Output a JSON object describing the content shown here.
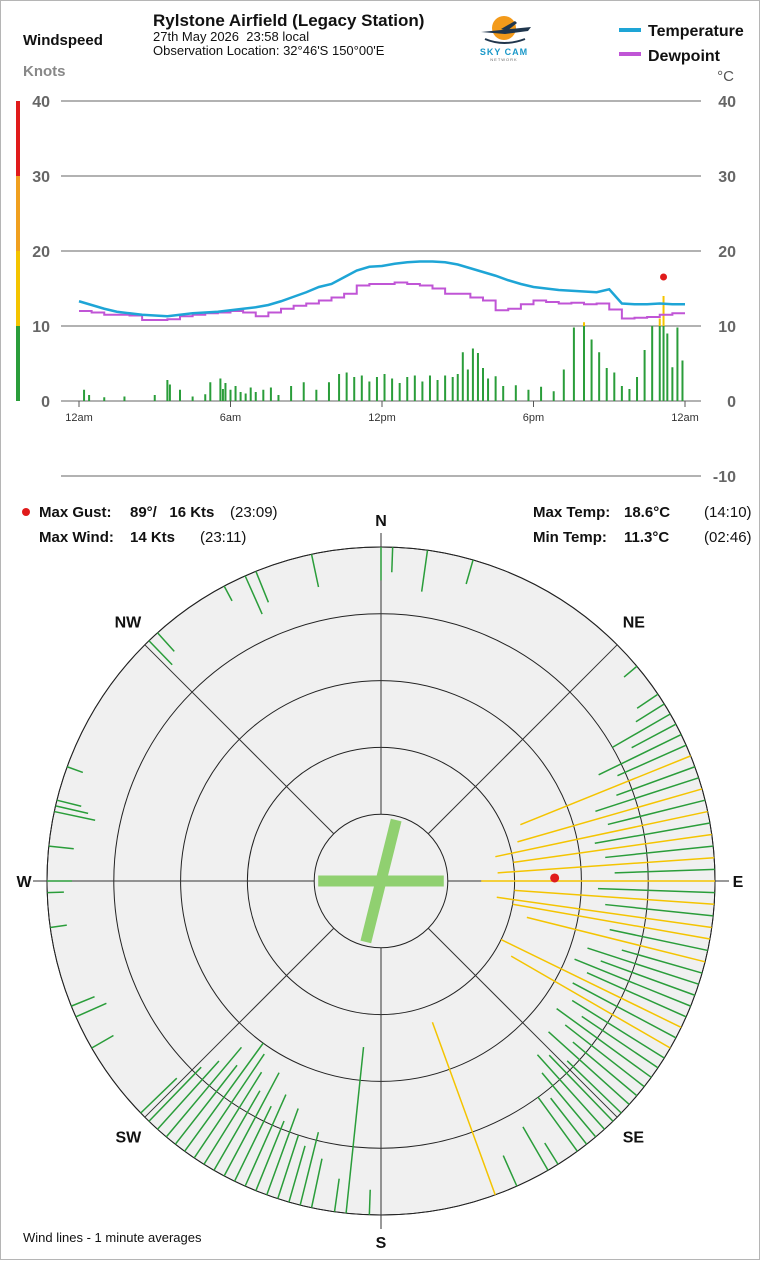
{
  "header": {
    "title": "Rylstone Airfield (Legacy Station)",
    "datetime": "27th May 2026  23:58 local",
    "location": "Observation Location: 32°46'S 150°00'E",
    "logo_text": "SKY CAM",
    "logo_subtext": "NETWORK"
  },
  "left_axis": {
    "title": "Windspeed",
    "unit": "Knots"
  },
  "right_axis": {
    "unit": "°C"
  },
  "legend": [
    {
      "label": "Temperature",
      "color": "#1ea5d6"
    },
    {
      "label": "Dewpoint",
      "color": "#c055d6"
    }
  ],
  "stats": {
    "max_gust_label": "Max Gust:",
    "max_gust_value": "89°/   16 Kts",
    "max_gust_time": "(23:09)",
    "max_wind_label": "Max Wind:",
    "max_wind_value": "14 Kts",
    "max_wind_time": "(23:11)",
    "max_temp_label": "Max Temp:",
    "max_temp_value": "18.6°C",
    "max_temp_time": "(14:10)",
    "min_temp_label": "Min Temp:",
    "min_temp_value": "11.3°C",
    "min_temp_time": "(02:46)"
  },
  "rose": {
    "directions": [
      "N",
      "NE",
      "E",
      "SE",
      "S",
      "SW",
      "W",
      "NW"
    ],
    "footnote": "Wind lines - 1 minute averages"
  },
  "chart_data": [
    {
      "type": "line",
      "x_unit": "hour of day",
      "x_ticks": [
        0,
        6,
        12,
        18,
        24
      ],
      "x_tick_labels": [
        "12am",
        "6am",
        "12pm",
        "6pm",
        "12am"
      ],
      "left_axis": {
        "label": "Windspeed",
        "unit": "Knots",
        "ylim": [
          0,
          40
        ],
        "ticks": [
          0,
          10,
          20,
          30,
          40
        ]
      },
      "right_axis": {
        "unit": "°C",
        "ylim": [
          -10,
          40
        ],
        "ticks": [
          -10,
          0,
          10,
          20,
          30,
          40
        ]
      },
      "color_bands": [
        {
          "from": 0,
          "to": 10,
          "color": "#2a9d3a"
        },
        {
          "from": 10,
          "to": 20,
          "color": "#f4c400"
        },
        {
          "from": 20,
          "to": 30,
          "color": "#f0a020"
        },
        {
          "from": 30,
          "to": 40,
          "color": "#e01b1b"
        }
      ],
      "series": [
        {
          "name": "Temperature",
          "color": "#1ea5d6",
          "x": [
            0,
            0.5,
            1,
            1.5,
            2,
            2.5,
            3,
            3.5,
            4,
            4.5,
            5,
            5.5,
            6,
            6.5,
            7,
            7.5,
            8,
            8.5,
            9,
            9.5,
            10,
            10.5,
            11,
            11.5,
            12,
            12.5,
            13,
            13.5,
            14,
            14.5,
            15,
            15.5,
            16,
            16.5,
            17,
            17.5,
            18,
            18.5,
            19,
            19.5,
            20,
            20.5,
            21,
            21.5,
            22,
            22.5,
            23,
            23.5,
            24
          ],
          "y": [
            13.3,
            12.8,
            12.3,
            11.9,
            11.7,
            11.5,
            11.4,
            11.3,
            11.5,
            11.7,
            11.8,
            11.9,
            12.1,
            12.3,
            12.5,
            12.8,
            13.3,
            13.9,
            14.5,
            15.2,
            15.6,
            16.5,
            17.4,
            17.9,
            18.0,
            18.3,
            18.5,
            18.6,
            18.6,
            18.5,
            18.2,
            17.7,
            17.2,
            16.7,
            16.1,
            15.6,
            15.2,
            15.0,
            14.8,
            14.7,
            14.6,
            14.5,
            14.9,
            13.0,
            12.9,
            12.9,
            13.0,
            12.9,
            12.9
          ]
        },
        {
          "name": "Dewpoint",
          "color": "#c055d6",
          "x": [
            0,
            0.5,
            1,
            1.5,
            2,
            2.5,
            3,
            3.5,
            4,
            4.5,
            5,
            5.5,
            6,
            6.5,
            7,
            7.5,
            8,
            8.5,
            9,
            9.5,
            10,
            10.5,
            11,
            11.5,
            12,
            12.5,
            13,
            13.5,
            14,
            14.5,
            15,
            15.5,
            16,
            16.5,
            17,
            17.5,
            18,
            18.5,
            19,
            19.5,
            20,
            20.5,
            21,
            21.5,
            22,
            22.5,
            23,
            23.5,
            24
          ],
          "y": [
            12.0,
            11.8,
            11.5,
            11.5,
            11.4,
            10.8,
            10.8,
            10.9,
            11.3,
            11.5,
            11.7,
            11.8,
            12.0,
            11.8,
            11.3,
            11.8,
            12.3,
            12.7,
            13.0,
            13.4,
            13.8,
            14.3,
            15.4,
            15.6,
            15.6,
            15.8,
            15.6,
            15.4,
            15.0,
            14.3,
            14.3,
            13.8,
            13.4,
            12.1,
            12.3,
            12.9,
            13.4,
            13.2,
            13.0,
            13.1,
            12.9,
            13.0,
            12.2,
            11.0,
            11.1,
            11.2,
            11.5,
            11.7,
            11.7
          ]
        },
        {
          "name": "",
          "type": "bar",
          "color": "#2a9d3a",
          "note_values": "windspeed knots",
          "x": [
            0.2,
            0.4,
            1.0,
            1.8,
            3.0,
            3.5,
            3.6,
            4.0,
            4.5,
            5.0,
            5.2,
            5.6,
            5.7,
            5.8,
            6.0,
            6.2,
            6.4,
            6.6,
            6.8,
            7.0,
            7.3,
            7.6,
            7.9,
            8.4,
            8.9,
            9.4,
            9.9,
            10.3,
            10.6,
            10.9,
            11.2,
            11.5,
            11.8,
            12.1,
            12.4,
            12.7,
            13.0,
            13.3,
            13.6,
            13.9,
            14.2,
            14.5,
            14.8,
            15.0,
            15.2,
            15.4,
            15.6,
            15.8,
            16.0,
            16.2,
            16.5,
            16.8,
            17.3,
            17.8,
            18.3,
            18.8,
            19.2,
            19.6,
            20.0,
            20.3,
            20.6,
            20.9,
            21.2,
            21.5,
            21.8,
            22.1,
            22.4,
            22.7,
            23.0,
            23.15,
            23.3,
            23.5,
            23.7,
            23.9
          ],
          "y": [
            1.5,
            0.8,
            0.5,
            0.6,
            0.8,
            2.8,
            2.2,
            1.5,
            0.6,
            0.9,
            2.5,
            3.0,
            1.6,
            2.4,
            1.5,
            2.0,
            1.2,
            1.0,
            1.8,
            1.2,
            1.5,
            1.8,
            0.8,
            2.0,
            2.5,
            1.5,
            2.5,
            3.6,
            3.8,
            3.2,
            3.4,
            2.6,
            3.2,
            3.6,
            3.0,
            2.4,
            3.2,
            3.4,
            2.6,
            3.4,
            2.8,
            3.4,
            3.2,
            3.6,
            6.5,
            4.2,
            7.0,
            6.4,
            4.4,
            3.0,
            3.3,
            2.0,
            2.1,
            1.5,
            1.9,
            1.3,
            4.2,
            9.8,
            10.5,
            8.2,
            6.5,
            4.4,
            3.8,
            2.0,
            1.6,
            3.2,
            6.8,
            10.0,
            11.0,
            14.0,
            9.0,
            4.5,
            9.8,
            5.4
          ]
        }
      ],
      "markers": [
        {
          "label": "max gust",
          "x": 23.15,
          "y": 16,
          "color": "#e01b1b"
        }
      ]
    },
    {
      "type": "wind-rose",
      "rings": 5,
      "ring_scale_note": "radius proportional to windspeed; outer ring = 20 knots",
      "cross": {
        "color": "#90d070",
        "directions": [
          14,
          90
        ]
      },
      "gust_dot": {
        "direction": 89,
        "speed": 16,
        "color": "#e01b1b"
      },
      "line_colors": {
        "light": "#2a9d3a",
        "strong": "#f4c400"
      },
      "lines": [
        {
          "dir": 0,
          "speed": 2
        },
        {
          "dir": 2,
          "speed": 1.5
        },
        {
          "dir": 8,
          "speed": 2.5
        },
        {
          "dir": 16,
          "speed": 1.5
        },
        {
          "dir": 348,
          "speed": 2
        },
        {
          "dir": 338,
          "speed": 2
        },
        {
          "dir": 336,
          "speed": 2.5
        },
        {
          "dir": 332,
          "speed": 1
        },
        {
          "dir": 318,
          "speed": 1.5
        },
        {
          "dir": 316,
          "speed": 2
        },
        {
          "dir": 290,
          "speed": 1
        },
        {
          "dir": 284,
          "speed": 1.5
        },
        {
          "dir": 283,
          "speed": 2
        },
        {
          "dir": 282,
          "speed": 2.5
        },
        {
          "dir": 276,
          "speed": 1.5
        },
        {
          "dir": 270,
          "speed": 1.5
        },
        {
          "dir": 268,
          "speed": 1
        },
        {
          "dir": 262,
          "speed": 1
        },
        {
          "dir": 248,
          "speed": 1.5
        },
        {
          "dir": 246,
          "speed": 2
        },
        {
          "dir": 240,
          "speed": 1.5
        },
        {
          "dir": 226,
          "speed": 3
        },
        {
          "dir": 224,
          "speed": 4.5
        },
        {
          "dir": 222,
          "speed": 5.5
        },
        {
          "dir": 220,
          "speed": 7
        },
        {
          "dir": 218,
          "speed": 6
        },
        {
          "dir": 216,
          "speed": 8
        },
        {
          "dir": 214,
          "speed": 7.5
        },
        {
          "dir": 212,
          "speed": 6.5
        },
        {
          "dir": 210,
          "speed": 5.5
        },
        {
          "dir": 208,
          "speed": 7
        },
        {
          "dir": 206,
          "speed": 5
        },
        {
          "dir": 204,
          "speed": 6
        },
        {
          "dir": 202,
          "speed": 4.5
        },
        {
          "dir": 200,
          "speed": 5.5
        },
        {
          "dir": 198,
          "speed": 4
        },
        {
          "dir": 196,
          "speed": 3.5
        },
        {
          "dir": 194,
          "speed": 4.5
        },
        {
          "dir": 192,
          "speed": 3
        },
        {
          "dir": 188,
          "speed": 2
        },
        {
          "dir": 186,
          "speed": 10
        },
        {
          "dir": 182,
          "speed": 1.5
        },
        {
          "dir": 160,
          "speed": 11
        },
        {
          "dir": 156,
          "speed": 2
        },
        {
          "dir": 150,
          "speed": 3
        },
        {
          "dir": 148,
          "speed": 1.5
        },
        {
          "dir": 144,
          "speed": 4
        },
        {
          "dir": 142,
          "speed": 3.5
        },
        {
          "dir": 140,
          "speed": 5
        },
        {
          "dir": 138,
          "speed": 6
        },
        {
          "dir": 136,
          "speed": 5.5
        },
        {
          "dir": 134,
          "speed": 4.5
        },
        {
          "dir": 132,
          "speed": 6.5
        },
        {
          "dir": 130,
          "speed": 5
        },
        {
          "dir": 128,
          "speed": 6
        },
        {
          "dir": 126,
          "speed": 7
        },
        {
          "dir": 124,
          "speed": 5.5
        },
        {
          "dir": 122,
          "speed": 6.5
        },
        {
          "dir": 120,
          "speed": 11
        },
        {
          "dir": 118,
          "speed": 7
        },
        {
          "dir": 116,
          "speed": 12
        },
        {
          "dir": 114,
          "speed": 6.5
        },
        {
          "dir": 112,
          "speed": 7.5
        },
        {
          "dir": 110,
          "speed": 6
        },
        {
          "dir": 108,
          "speed": 7
        },
        {
          "dir": 106,
          "speed": 5
        },
        {
          "dir": 104,
          "speed": 11
        },
        {
          "dir": 102,
          "speed": 6
        },
        {
          "dir": 100,
          "speed": 12
        },
        {
          "dir": 98,
          "speed": 13
        },
        {
          "dir": 96,
          "speed": 6.5
        },
        {
          "dir": 94,
          "speed": 12
        },
        {
          "dir": 92,
          "speed": 7
        },
        {
          "dir": 90,
          "speed": 14
        },
        {
          "dir": 88,
          "speed": 6
        },
        {
          "dir": 86,
          "speed": 13
        },
        {
          "dir": 84,
          "speed": 6.5
        },
        {
          "dir": 82,
          "speed": 12
        },
        {
          "dir": 80,
          "speed": 7
        },
        {
          "dir": 78,
          "speed": 13
        },
        {
          "dir": 76,
          "speed": 6
        },
        {
          "dir": 74,
          "speed": 11.5
        },
        {
          "dir": 72,
          "speed": 6.5
        },
        {
          "dir": 70,
          "speed": 5
        },
        {
          "dir": 68,
          "speed": 11
        },
        {
          "dir": 66,
          "speed": 4.5
        },
        {
          "dir": 64,
          "speed": 5.5
        },
        {
          "dir": 62,
          "speed": 3
        },
        {
          "dir": 60,
          "speed": 4
        },
        {
          "dir": 58,
          "speed": 2
        },
        {
          "dir": 56,
          "speed": 1.5
        },
        {
          "dir": 50,
          "speed": 1
        }
      ]
    }
  ]
}
